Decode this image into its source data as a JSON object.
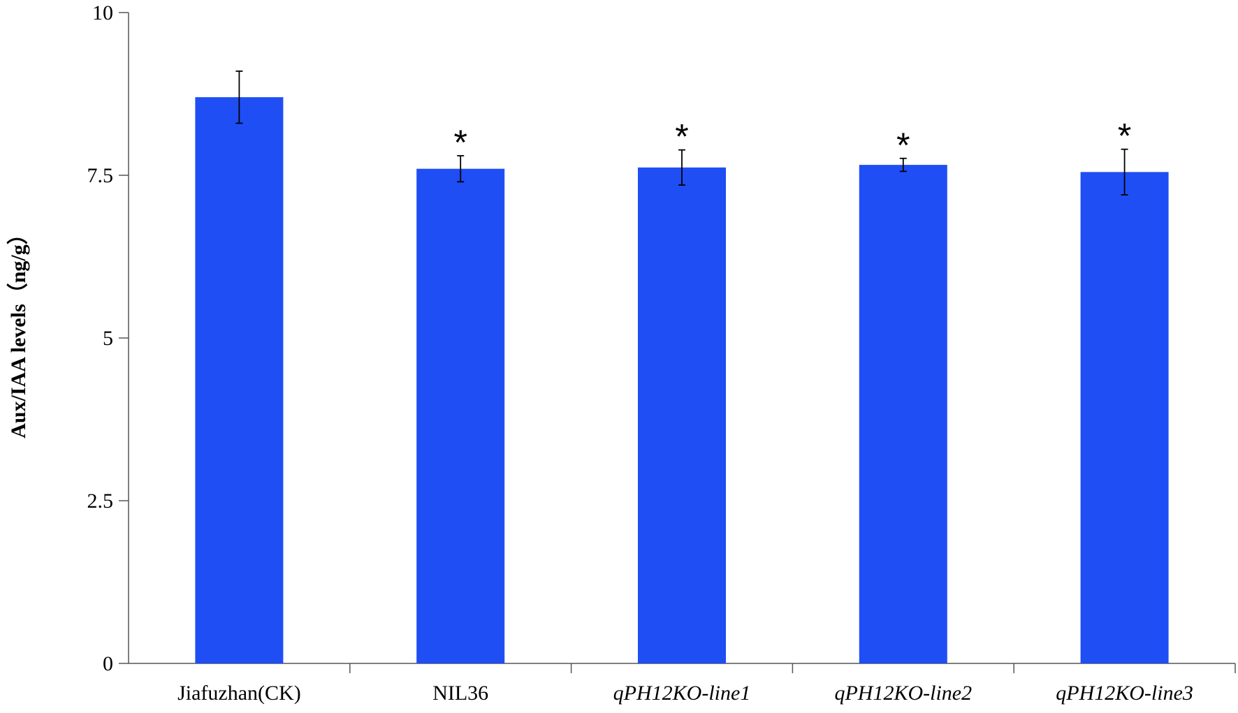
{
  "chart_data": {
    "type": "bar",
    "categories": [
      "Jiafuzhan(CK)",
      "NIL36",
      "qPH12KO-line1",
      "qPH12KO-line2",
      "qPH12KO-line3"
    ],
    "italic_categories": [
      false,
      false,
      true,
      true,
      true
    ],
    "values": [
      8.7,
      7.6,
      7.62,
      7.66,
      7.55
    ],
    "errors": [
      0.4,
      0.2,
      0.27,
      0.1,
      0.35
    ],
    "significance": [
      "",
      "*",
      "*",
      "*",
      "*"
    ],
    "ylabel": "Aux/IAA levels（ng/g）",
    "ylim": [
      0,
      10
    ],
    "yticks": [
      0,
      2.5,
      5,
      7.5,
      10
    ],
    "ytick_labels": [
      "0",
      "2.5",
      "5",
      "7.5",
      "10"
    ],
    "bar_color": "#1f4ef5",
    "grid": false
  }
}
